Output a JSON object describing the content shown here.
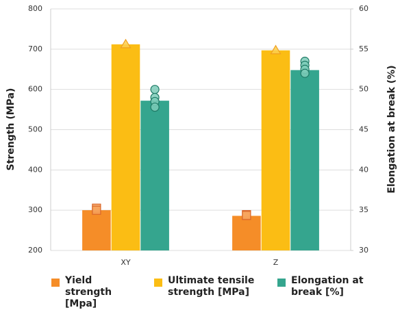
{
  "chart_data": {
    "type": "bar",
    "categories": [
      "XY",
      "Z"
    ],
    "ylabel": "Strength (MPa)",
    "y2label": "Elongation at break (%)",
    "ylim": [
      200,
      800
    ],
    "yticks": [
      200,
      300,
      400,
      500,
      600,
      700,
      800
    ],
    "y2lim": [
      30,
      60
    ],
    "y2ticks": [
      30,
      35,
      40,
      45,
      50,
      55,
      60
    ],
    "grid": true,
    "series": [
      {
        "name": "Yield strength [Mpa]",
        "color": "#f58d28",
        "values": [
          300,
          286
        ],
        "points": [
          [
            305,
            300
          ],
          [
            289,
            287
          ]
        ]
      },
      {
        "name": "Ultimate tensile strength [MPa]",
        "color": "#fbbd14",
        "values": [
          712,
          697
        ],
        "points": [
          [
            712
          ],
          [
            697
          ]
        ]
      },
      {
        "name": "Elongation at break [%]",
        "color": "#35a58e",
        "axis": "y2",
        "values": [
          48.6,
          52.4
        ],
        "points": [
          [
            50,
            49,
            48.5,
            47.8
          ],
          [
            53.5,
            53,
            52.5,
            52
          ]
        ]
      }
    ]
  }
}
